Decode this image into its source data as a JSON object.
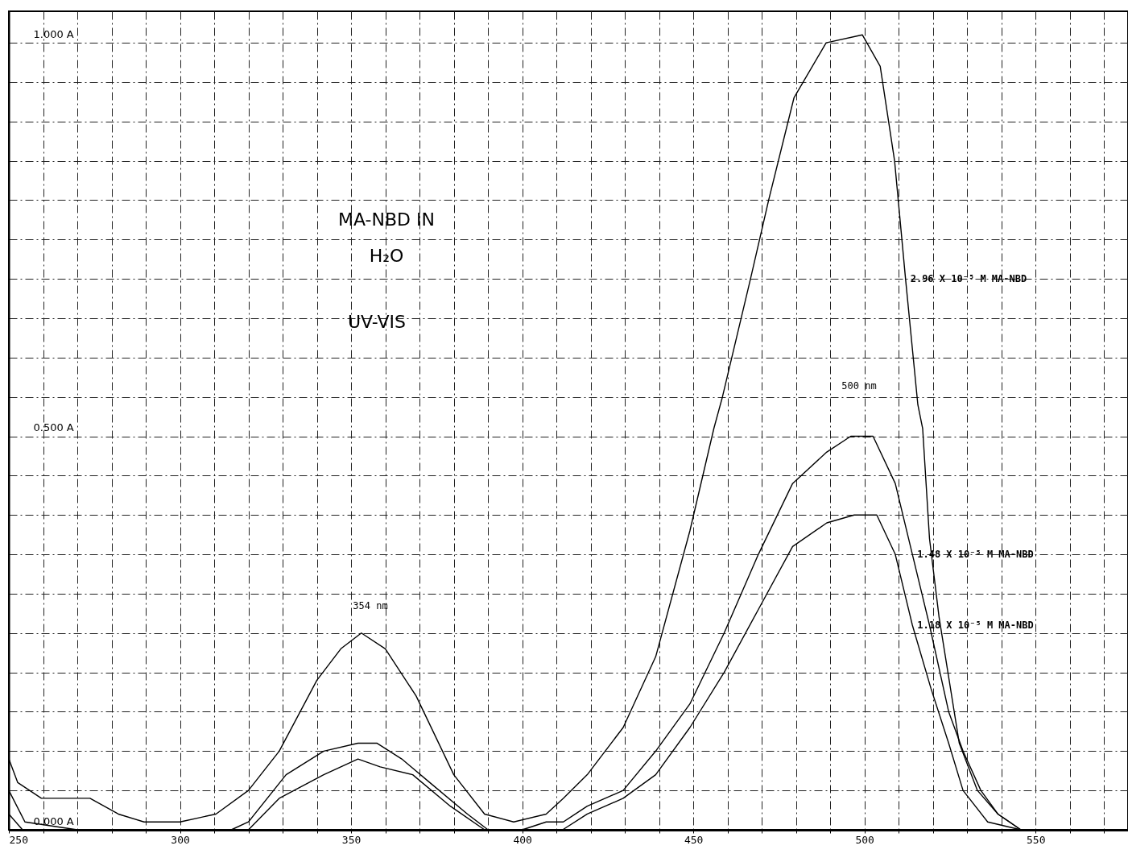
{
  "chart_data": {
    "type": "line",
    "annotations": [
      "MA-NBD  IN",
      "H₂O",
      "UV-VIS",
      "354 nm",
      "500 nm"
    ],
    "xlim": [
      250,
      577
    ],
    "ylim": [
      0,
      1.04
    ],
    "xticks": [
      250,
      {
        "value": 260,
        "label": null
      },
      {
        "value": 270,
        "label": null
      },
      {
        "value": 280,
        "label": null
      },
      {
        "value": 290,
        "label": null
      },
      300,
      {
        "value": 310,
        "label": null
      },
      {
        "value": 320,
        "label": null
      },
      {
        "value": 330,
        "label": null
      },
      {
        "value": 340,
        "label": null
      },
      350,
      {
        "value": 360,
        "label": null
      },
      {
        "value": 370,
        "label": null
      },
      {
        "value": 380,
        "label": null
      },
      {
        "value": 390,
        "label": null
      },
      400,
      {
        "value": 410,
        "label": null
      },
      {
        "value": 420,
        "label": null
      },
      {
        "value": 430,
        "label": null
      },
      {
        "value": 440,
        "label": null
      },
      450,
      {
        "value": 460,
        "label": null
      },
      {
        "value": 470,
        "label": null
      },
      {
        "value": 480,
        "label": null
      },
      {
        "value": 490,
        "label": null
      },
      500,
      {
        "value": 510,
        "label": null
      },
      {
        "value": 520,
        "label": null
      },
      {
        "value": 530,
        "label": null
      },
      {
        "value": 540,
        "label": null
      },
      550,
      {
        "value": 560,
        "label": null
      },
      {
        "value": 570,
        "label": null
      }
    ],
    "yticks": [
      {
        "value": 0,
        "label": "0.000 A"
      },
      {
        "value": 0.05,
        "label": null
      },
      {
        "value": 0.1,
        "label": null
      },
      {
        "value": 0.15,
        "label": null
      },
      {
        "value": 0.2,
        "label": null
      },
      {
        "value": 0.25,
        "label": null
      },
      {
        "value": 0.3,
        "label": null
      },
      {
        "value": 0.35,
        "label": null
      },
      {
        "value": 0.4,
        "label": null
      },
      {
        "value": 0.45,
        "label": null
      },
      {
        "value": 0.5,
        "label": "0.500 A"
      },
      {
        "value": 0.55,
        "label": null
      },
      {
        "value": 0.6,
        "label": null
      },
      {
        "value": 0.65,
        "label": null
      },
      {
        "value": 0.7,
        "label": null
      },
      {
        "value": 0.75,
        "label": null
      },
      {
        "value": 0.8,
        "label": null
      },
      {
        "value": 0.85,
        "label": null
      },
      {
        "value": 0.9,
        "label": null
      },
      {
        "value": 0.95,
        "label": null
      },
      {
        "value": 1.0,
        "label": "1.000 A"
      }
    ],
    "grid": true,
    "line_style": "solid",
    "series": [
      {
        "name": "2.96 X 10⁻⁵ M MA-NBD",
        "color": "#000000",
        "x": [
          250,
          252.6,
          259.5,
          273.7,
          282,
          289.5,
          300,
          310.5,
          320,
          329,
          340,
          347,
          353,
          360,
          369,
          380,
          389,
          397.5,
          407,
          412,
          419,
          429.5,
          439,
          449,
          456,
          458.5,
          466.7,
          472,
          479.4,
          488.8,
          499.4,
          504.6,
          508.8,
          512,
          515.6,
          517,
          519,
          521.8,
          527.7,
          533,
          539,
          545.7
        ],
        "values": [
          0.09,
          0.06,
          0.04,
          0.04,
          0.02,
          0.01,
          0.01,
          0.02,
          0.05,
          0.1,
          0.19,
          0.23,
          0.25,
          0.23,
          0.17,
          0.07,
          0.02,
          0.01,
          0.02,
          0.04,
          0.07,
          0.13,
          0.22,
          0.38,
          0.51,
          0.55,
          0.7,
          0.8,
          0.93,
          1.0,
          1.01,
          0.97,
          0.85,
          0.7,
          0.54,
          0.51,
          0.37,
          0.27,
          0.11,
          0.05,
          0.02,
          0.0
        ]
      },
      {
        "name": "1.48 X 10⁻⁵ M MA-NBD",
        "color": "#000000",
        "x": [
          250,
          254.7,
          270,
          300,
          315,
          320,
          331,
          342,
          352,
          357.6,
          364.8,
          373,
          384,
          390,
          400,
          407,
          412,
          419,
          429.5,
          439,
          449,
          459,
          469,
          479,
          489,
          496,
          502.5,
          509,
          514,
          519,
          524.6,
          528.8,
          534,
          539,
          545.7
        ],
        "values": [
          0.05,
          0.01,
          0.0,
          0.0,
          0.0,
          0.01,
          0.07,
          0.1,
          0.11,
          0.11,
          0.09,
          0.06,
          0.02,
          0.0,
          0.0,
          0.01,
          0.01,
          0.03,
          0.05,
          0.1,
          0.16,
          0.25,
          0.35,
          0.44,
          0.48,
          0.5,
          0.5,
          0.44,
          0.35,
          0.26,
          0.15,
          0.1,
          0.05,
          0.02,
          0.0
        ]
      },
      {
        "name": "1.18 X 10⁻⁵ M MA-NBD",
        "color": "#000000",
        "x": [
          250,
          254,
          270,
          300,
          320,
          329,
          342,
          352,
          358.5,
          368,
          379,
          389,
          400,
          411.8,
          419,
          429.5,
          439,
          449,
          459,
          469,
          479,
          489,
          497,
          503.6,
          509,
          514,
          519.4,
          524.6,
          528.8,
          536,
          545.7
        ],
        "values": [
          0.02,
          0.0,
          0.0,
          0.0,
          0.0,
          0.04,
          0.07,
          0.09,
          0.08,
          0.07,
          0.03,
          0.0,
          0.0,
          0.0,
          0.02,
          0.04,
          0.07,
          0.13,
          0.2,
          0.28,
          0.36,
          0.39,
          0.4,
          0.4,
          0.35,
          0.26,
          0.18,
          0.11,
          0.05,
          0.01,
          0.0
        ]
      }
    ]
  }
}
